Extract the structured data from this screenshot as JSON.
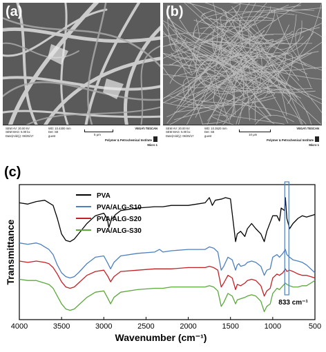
{
  "panel_a": {
    "letter": "(a)",
    "info_lines_left": [
      "SEM HV: 20.00 kV",
      "SEM MAG: 5.00 kx",
      "Date(m/d/y): 06/25/17"
    ],
    "info_lines_mid": [
      "WD: 10.4300 mm",
      "Det: SE",
      "guest"
    ],
    "scale_label": "5 μm",
    "brand": "VEGA\\\\ TESCAN",
    "institute": "Polymer & Petrochemical Institute",
    "micro": "Micro 1"
  },
  "panel_b": {
    "letter": "(b)",
    "info_lines_left": [
      "SEM HV: 20.00 kV",
      "SEM MAG: 5.00 kx",
      "Date(m/d/y): 06/25/17"
    ],
    "info_lines_mid": [
      "WD: 10.3520 mm",
      "Det: SE",
      "guest"
    ],
    "scale_label": "10 μm",
    "brand": "VEGA\\\\ TESCAN",
    "institute": "Polymer & Petrochemical Institute",
    "micro": "Micro 1"
  },
  "panel_c_letter": "(c)",
  "chart_data": {
    "type": "line",
    "xlabel": "Wavenumber (cm⁻¹)",
    "ylabel": "Transmittance",
    "x_ticks": [
      4000,
      3500,
      3000,
      2500,
      2000,
      1500,
      1000,
      500
    ],
    "xlim": [
      4000,
      500
    ],
    "x_reversed": true,
    "annotation": "833 cm⁻¹",
    "annotation_x": 833,
    "series": [
      {
        "name": "PVA",
        "color": "#000000",
        "points": [
          [
            4000,
            0.82
          ],
          [
            3900,
            0.81
          ],
          [
            3800,
            0.83
          ],
          [
            3700,
            0.84
          ],
          [
            3650,
            0.82
          ],
          [
            3600,
            0.8
          ],
          [
            3550,
            0.7
          ],
          [
            3500,
            0.58
          ],
          [
            3450,
            0.53
          ],
          [
            3400,
            0.52
          ],
          [
            3350,
            0.54
          ],
          [
            3300,
            0.58
          ],
          [
            3200,
            0.66
          ],
          [
            3100,
            0.72
          ],
          [
            3000,
            0.74
          ],
          [
            2960,
            0.7
          ],
          [
            2940,
            0.63
          ],
          [
            2910,
            0.69
          ],
          [
            2860,
            0.73
          ],
          [
            2800,
            0.76
          ],
          [
            2600,
            0.78
          ],
          [
            2400,
            0.79
          ],
          [
            2300,
            0.79
          ],
          [
            2200,
            0.8
          ],
          [
            2100,
            0.8
          ],
          [
            2000,
            0.8
          ],
          [
            1900,
            0.81
          ],
          [
            1800,
            0.82
          ],
          [
            1750,
            0.86
          ],
          [
            1715,
            0.8
          ],
          [
            1680,
            0.84
          ],
          [
            1600,
            0.85
          ],
          [
            1560,
            0.86
          ],
          [
            1500,
            0.85
          ],
          [
            1440,
            0.52
          ],
          [
            1420,
            0.58
          ],
          [
            1380,
            0.6
          ],
          [
            1330,
            0.56
          ],
          [
            1300,
            0.62
          ],
          [
            1250,
            0.66
          ],
          [
            1200,
            0.62
          ],
          [
            1140,
            0.58
          ],
          [
            1100,
            0.52
          ],
          [
            1070,
            0.6
          ],
          [
            1000,
            0.72
          ],
          [
            950,
            0.72
          ],
          [
            920,
            0.68
          ],
          [
            900,
            0.78
          ],
          [
            860,
            0.76
          ],
          [
            850,
            0.86
          ],
          [
            833,
            0.7
          ],
          [
            800,
            0.62
          ],
          [
            760,
            0.66
          ],
          [
            700,
            0.7
          ],
          [
            650,
            0.72
          ],
          [
            600,
            0.71
          ],
          [
            550,
            0.72
          ],
          [
            500,
            0.73
          ]
        ]
      },
      {
        "name": "PVA/ALG-S10",
        "color": "#4a7fc0",
        "points": [
          [
            4000,
            0.51
          ],
          [
            3900,
            0.5
          ],
          [
            3800,
            0.51
          ],
          [
            3750,
            0.5
          ],
          [
            3700,
            0.48
          ],
          [
            3650,
            0.46
          ],
          [
            3600,
            0.42
          ],
          [
            3550,
            0.34
          ],
          [
            3500,
            0.28
          ],
          [
            3450,
            0.25
          ],
          [
            3400,
            0.24
          ],
          [
            3350,
            0.25
          ],
          [
            3300,
            0.28
          ],
          [
            3200,
            0.35
          ],
          [
            3100,
            0.4
          ],
          [
            3000,
            0.41
          ],
          [
            2950,
            0.35
          ],
          [
            2920,
            0.31
          ],
          [
            2880,
            0.36
          ],
          [
            2800,
            0.41
          ],
          [
            2600,
            0.43
          ],
          [
            2400,
            0.44
          ],
          [
            2340,
            0.46
          ],
          [
            2300,
            0.44
          ],
          [
            2200,
            0.45
          ],
          [
            2000,
            0.46
          ],
          [
            1900,
            0.46
          ],
          [
            1800,
            0.46
          ],
          [
            1750,
            0.48
          ],
          [
            1700,
            0.47
          ],
          [
            1650,
            0.44
          ],
          [
            1610,
            0.3
          ],
          [
            1580,
            0.33
          ],
          [
            1530,
            0.4
          ],
          [
            1480,
            0.38
          ],
          [
            1440,
            0.3
          ],
          [
            1420,
            0.34
          ],
          [
            1400,
            0.35
          ],
          [
            1380,
            0.33
          ],
          [
            1330,
            0.34
          ],
          [
            1300,
            0.36
          ],
          [
            1250,
            0.37
          ],
          [
            1200,
            0.36
          ],
          [
            1140,
            0.33
          ],
          [
            1100,
            0.26
          ],
          [
            1070,
            0.3
          ],
          [
            1030,
            0.31
          ],
          [
            1000,
            0.4
          ],
          [
            950,
            0.42
          ],
          [
            920,
            0.4
          ],
          [
            880,
            0.43
          ],
          [
            850,
            0.46
          ],
          [
            833,
            0.42
          ],
          [
            800,
            0.4
          ],
          [
            760,
            0.38
          ],
          [
            700,
            0.37
          ],
          [
            650,
            0.36
          ],
          [
            600,
            0.34
          ],
          [
            550,
            0.31
          ],
          [
            500,
            0.28
          ]
        ]
      },
      {
        "name": "PVA/ALG-S20",
        "color": "#c42024",
        "points": [
          [
            4000,
            0.37
          ],
          [
            3900,
            0.36
          ],
          [
            3800,
            0.37
          ],
          [
            3700,
            0.36
          ],
          [
            3650,
            0.35
          ],
          [
            3600,
            0.32
          ],
          [
            3550,
            0.27
          ],
          [
            3500,
            0.21
          ],
          [
            3450,
            0.17
          ],
          [
            3400,
            0.16
          ],
          [
            3350,
            0.17
          ],
          [
            3300,
            0.2
          ],
          [
            3200,
            0.26
          ],
          [
            3100,
            0.29
          ],
          [
            3000,
            0.3
          ],
          [
            2950,
            0.25
          ],
          [
            2920,
            0.21
          ],
          [
            2880,
            0.25
          ],
          [
            2800,
            0.29
          ],
          [
            2600,
            0.3
          ],
          [
            2400,
            0.31
          ],
          [
            2300,
            0.31
          ],
          [
            2200,
            0.31
          ],
          [
            2000,
            0.32
          ],
          [
            1900,
            0.32
          ],
          [
            1800,
            0.32
          ],
          [
            1750,
            0.33
          ],
          [
            1700,
            0.32
          ],
          [
            1650,
            0.3
          ],
          [
            1610,
            0.17
          ],
          [
            1580,
            0.2
          ],
          [
            1530,
            0.26
          ],
          [
            1480,
            0.24
          ],
          [
            1440,
            0.15
          ],
          [
            1420,
            0.19
          ],
          [
            1380,
            0.18
          ],
          [
            1330,
            0.2
          ],
          [
            1300,
            0.22
          ],
          [
            1250,
            0.23
          ],
          [
            1200,
            0.22
          ],
          [
            1140,
            0.18
          ],
          [
            1100,
            0.1
          ],
          [
            1070,
            0.14
          ],
          [
            1030,
            0.16
          ],
          [
            1000,
            0.24
          ],
          [
            950,
            0.27
          ],
          [
            920,
            0.26
          ],
          [
            880,
            0.28
          ],
          [
            850,
            0.31
          ],
          [
            833,
            0.29
          ],
          [
            800,
            0.3
          ],
          [
            760,
            0.29
          ],
          [
            700,
            0.27
          ],
          [
            650,
            0.26
          ],
          [
            600,
            0.26
          ],
          [
            550,
            0.25
          ],
          [
            500,
            0.24
          ]
        ]
      },
      {
        "name": "PVA/ALG-S30",
        "color": "#5aa83a",
        "points": [
          [
            4000,
            0.23
          ],
          [
            3900,
            0.22
          ],
          [
            3800,
            0.22
          ],
          [
            3700,
            0.2
          ],
          [
            3650,
            0.19
          ],
          [
            3600,
            0.16
          ],
          [
            3550,
            0.1
          ],
          [
            3500,
            0.04
          ],
          [
            3450,
            0.0
          ],
          [
            3400,
            -0.01
          ],
          [
            3350,
            0.0
          ],
          [
            3300,
            0.03
          ],
          [
            3200,
            0.09
          ],
          [
            3100,
            0.13
          ],
          [
            3000,
            0.14
          ],
          [
            2950,
            0.08
          ],
          [
            2920,
            0.04
          ],
          [
            2880,
            0.09
          ],
          [
            2800,
            0.13
          ],
          [
            2600,
            0.15
          ],
          [
            2400,
            0.16
          ],
          [
            2300,
            0.16
          ],
          [
            2200,
            0.17
          ],
          [
            2000,
            0.17
          ],
          [
            1900,
            0.17
          ],
          [
            1800,
            0.17
          ],
          [
            1750,
            0.18
          ],
          [
            1700,
            0.17
          ],
          [
            1650,
            0.14
          ],
          [
            1610,
            0.02
          ],
          [
            1580,
            0.05
          ],
          [
            1530,
            0.12
          ],
          [
            1480,
            0.1
          ],
          [
            1440,
            0.04
          ],
          [
            1420,
            0.07
          ],
          [
            1380,
            0.08
          ],
          [
            1330,
            0.09
          ],
          [
            1300,
            0.1
          ],
          [
            1250,
            0.11
          ],
          [
            1200,
            0.1
          ],
          [
            1140,
            0.06
          ],
          [
            1100,
            -0.02
          ],
          [
            1070,
            0.02
          ],
          [
            1030,
            0.04
          ],
          [
            1000,
            0.12
          ],
          [
            950,
            0.16
          ],
          [
            920,
            0.15
          ],
          [
            880,
            0.18
          ],
          [
            850,
            0.2
          ],
          [
            833,
            0.19
          ],
          [
            800,
            0.18
          ],
          [
            760,
            0.17
          ],
          [
            700,
            0.17
          ],
          [
            650,
            0.18
          ],
          [
            600,
            0.18
          ],
          [
            550,
            0.2
          ],
          [
            500,
            0.22
          ]
        ]
      }
    ]
  }
}
